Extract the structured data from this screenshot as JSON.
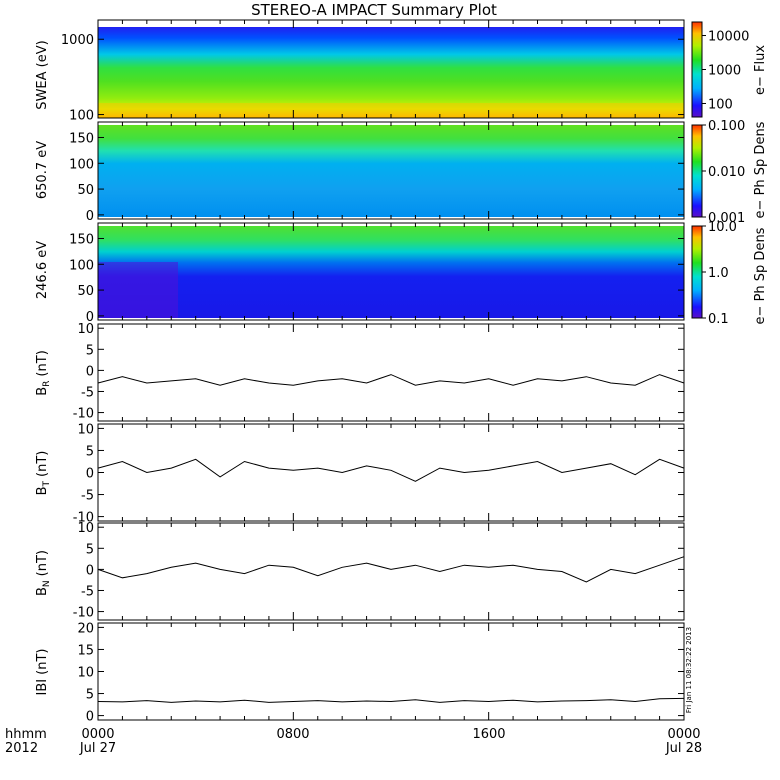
{
  "title": "STEREO-A IMPACT Summary Plot",
  "footer": {
    "axis_label_line1": "hhmm",
    "axis_label_line2": "2012",
    "ticks": [
      {
        "time": "0000",
        "date": "Jul 27"
      },
      {
        "time": "0800",
        "date": ""
      },
      {
        "time": "1600",
        "date": ""
      },
      {
        "time": "0000",
        "date": "Jul 28"
      }
    ]
  },
  "timestamp": "Fri Jan 11 08:32:22 2013",
  "chart_data": [
    {
      "type": "heatmap",
      "ylabel": "SWEA (eV)",
      "yscale": "log",
      "ylim": [
        90,
        1800
      ],
      "yticks": [
        "100",
        "1000"
      ],
      "colorbar": {
        "label": "e− Flux",
        "scale": "log",
        "range": [
          40,
          25000
        ],
        "ticks": [
          "100",
          "1000",
          "10000"
        ]
      }
    },
    {
      "type": "heatmap",
      "ylabel": "650.7 eV",
      "ylim": [
        -8,
        180
      ],
      "yticks": [
        "0",
        "50",
        "100",
        "150"
      ],
      "colorbar": {
        "label": "e− Ph Sp Dens",
        "scale": "log",
        "range": [
          0.001,
          0.1
        ],
        "ticks": [
          "0.001",
          "0.010",
          "0.100"
        ]
      }
    },
    {
      "type": "heatmap",
      "ylabel": "246.6 eV",
      "ylim": [
        -8,
        180
      ],
      "yticks": [
        "0",
        "50",
        "100",
        "150"
      ],
      "colorbar": {
        "label": "e− Ph Sp Dens",
        "scale": "log",
        "range": [
          0.1,
          10.0
        ],
        "ticks": [
          "0.1",
          "1.0",
          "10.0"
        ]
      }
    },
    {
      "type": "line",
      "ylabel": "B",
      "ylabel_sub": "R",
      "ylabel_unit": "(nT)",
      "ylim": [
        -12,
        11
      ],
      "yticks": [
        "-10",
        "-5",
        "0",
        "5",
        "10"
      ],
      "x_hours": [
        0,
        1,
        2,
        3,
        4,
        5,
        6,
        7,
        8,
        9,
        10,
        11,
        12,
        13,
        14,
        15,
        16,
        17,
        18,
        19,
        20,
        21,
        22,
        23,
        24
      ],
      "values": [
        -3.0,
        -1.5,
        -3.0,
        -2.5,
        -2.0,
        -3.5,
        -2.0,
        -3.0,
        -3.5,
        -2.5,
        -2.0,
        -3.0,
        -1.0,
        -3.5,
        -2.5,
        -3.0,
        -2.0,
        -3.5,
        -2.0,
        -2.5,
        -1.5,
        -3.0,
        -3.5,
        -1.0,
        -3.0
      ]
    },
    {
      "type": "line",
      "ylabel": "B",
      "ylabel_sub": "T",
      "ylabel_unit": "(nT)",
      "ylim": [
        -11,
        11
      ],
      "yticks": [
        "-10",
        "-5",
        "0",
        "5",
        "10"
      ],
      "x_hours": [
        0,
        1,
        2,
        3,
        4,
        5,
        6,
        7,
        8,
        9,
        10,
        11,
        12,
        13,
        14,
        15,
        16,
        17,
        18,
        19,
        20,
        21,
        22,
        23,
        24
      ],
      "values": [
        1.0,
        2.5,
        0.0,
        1.0,
        3.0,
        -1.0,
        2.5,
        1.0,
        0.5,
        1.0,
        0.0,
        1.5,
        0.5,
        -2.0,
        1.0,
        0.0,
        0.5,
        1.5,
        2.5,
        0.0,
        1.0,
        2.0,
        -0.5,
        3.0,
        1.0
      ]
    },
    {
      "type": "line",
      "ylabel": "B",
      "ylabel_sub": "N",
      "ylabel_unit": "(nT)",
      "ylim": [
        -12,
        11
      ],
      "yticks": [
        "-10",
        "-5",
        "0",
        "5",
        "10"
      ],
      "x_hours": [
        0,
        1,
        2,
        3,
        4,
        5,
        6,
        7,
        8,
        9,
        10,
        11,
        12,
        13,
        14,
        15,
        16,
        17,
        18,
        19,
        20,
        21,
        22,
        23,
        24
      ],
      "values": [
        0.0,
        -2.0,
        -1.0,
        0.5,
        1.5,
        0.0,
        -1.0,
        1.0,
        0.5,
        -1.5,
        0.5,
        1.5,
        0.0,
        1.0,
        -0.5,
        1.0,
        0.5,
        1.0,
        0.0,
        -0.5,
        -3.0,
        0.0,
        -1.0,
        1.0,
        3.0
      ]
    },
    {
      "type": "line",
      "ylabel": "IBI",
      "ylabel_unit": "(nT)",
      "ylim": [
        -1,
        21
      ],
      "yticks": [
        "0",
        "5",
        "10",
        "15",
        "20"
      ],
      "x_hours": [
        0,
        1,
        2,
        3,
        4,
        5,
        6,
        7,
        8,
        9,
        10,
        11,
        12,
        13,
        14,
        15,
        16,
        17,
        18,
        19,
        20,
        21,
        22,
        23,
        24
      ],
      "values": [
        3.2,
        3.1,
        3.4,
        3.0,
        3.3,
        3.1,
        3.5,
        3.0,
        3.2,
        3.4,
        3.1,
        3.3,
        3.2,
        3.6,
        3.0,
        3.4,
        3.2,
        3.5,
        3.1,
        3.3,
        3.4,
        3.6,
        3.2,
        3.8,
        3.9
      ]
    }
  ]
}
